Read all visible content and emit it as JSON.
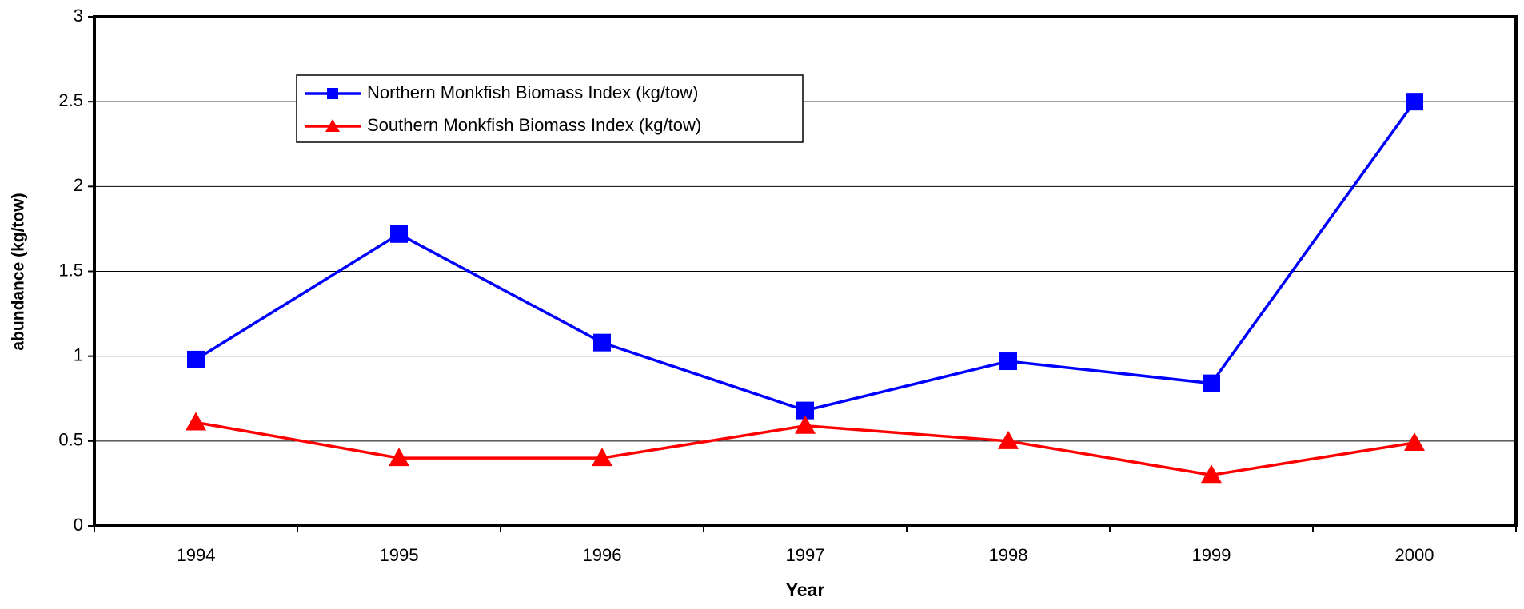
{
  "chart_data": {
    "type": "line",
    "x_label": "Year",
    "y_label": "abundance (kg/tow)",
    "categories": [
      "1994",
      "1995",
      "1996",
      "1997",
      "1998",
      "1999",
      "2000"
    ],
    "series": [
      {
        "name": "Northern Monkfish Biomass Index (kg/tow)",
        "color": "#0000ff",
        "marker": "square",
        "values": [
          0.98,
          1.72,
          1.08,
          0.68,
          0.97,
          0.84,
          2.5
        ]
      },
      {
        "name": "Southern Monkfish Biomass Index (kg/tow)",
        "color": "#ff0000",
        "marker": "triangle",
        "values": [
          0.61,
          0.4,
          0.4,
          0.59,
          0.5,
          0.3,
          0.49
        ]
      }
    ],
    "ylim": [
      0,
      3
    ],
    "yticks": [
      0,
      0.5,
      1,
      1.5,
      2,
      2.5,
      3
    ],
    "grid": true,
    "legend": "upper left"
  }
}
